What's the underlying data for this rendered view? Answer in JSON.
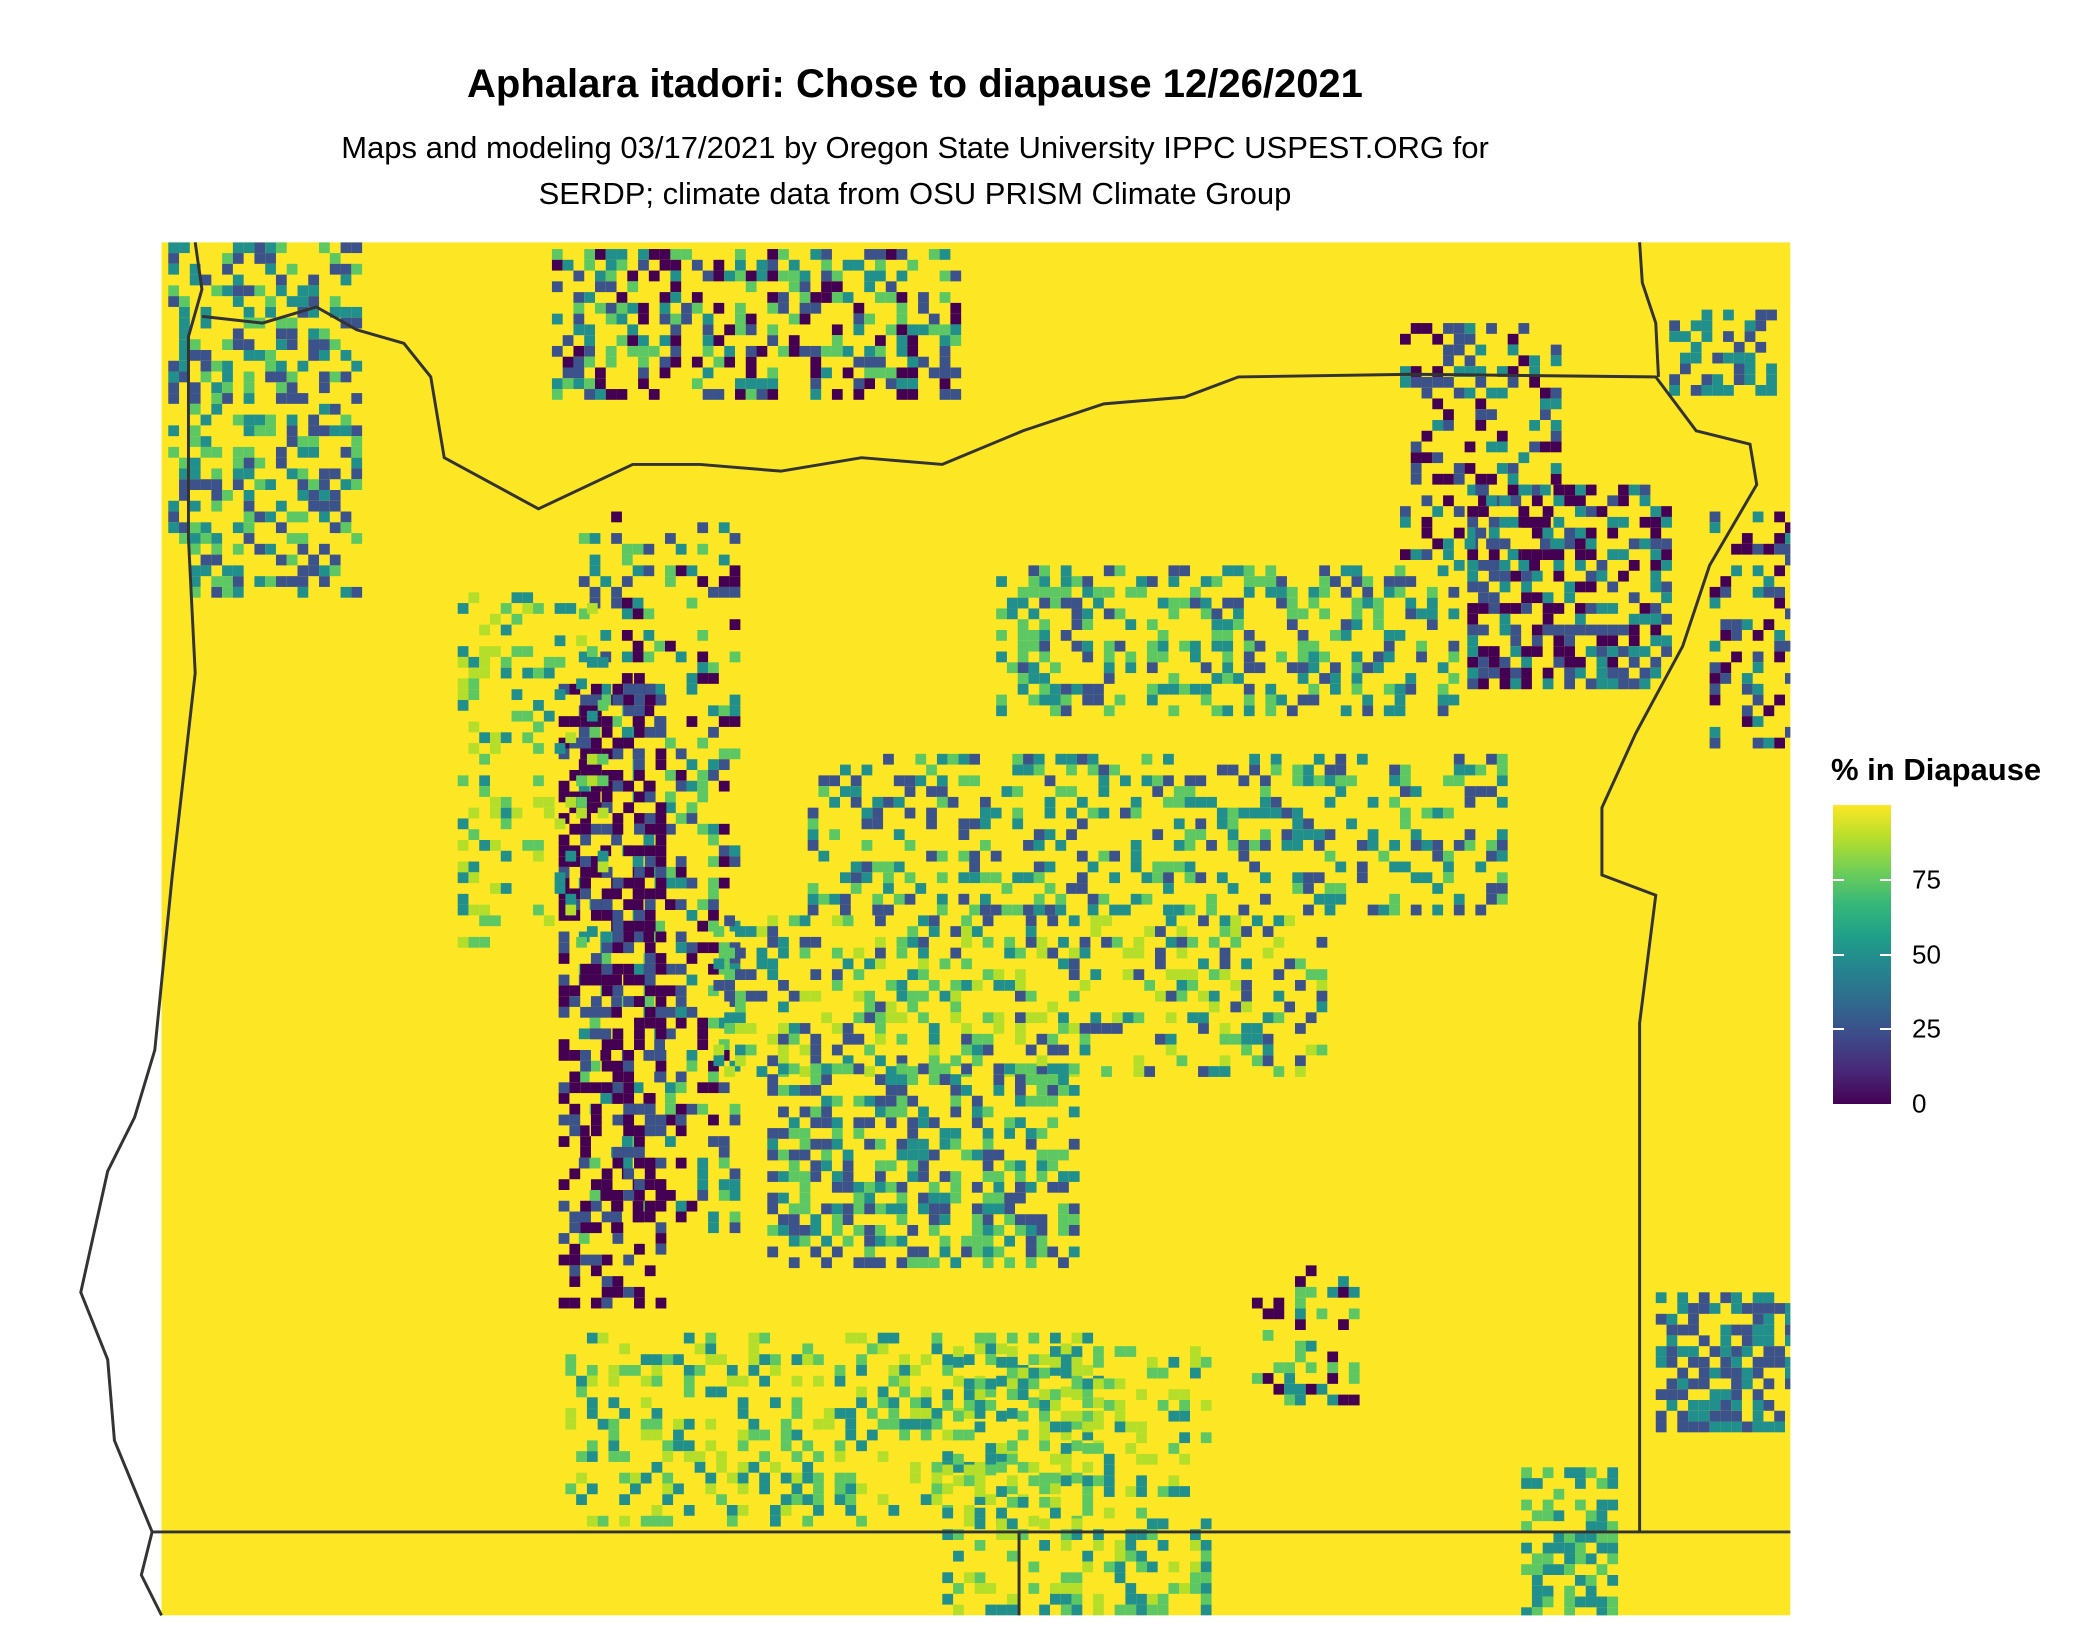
{
  "chart_data": {
    "type": "heatmap",
    "title": "Aphalara itadori: Chose to diapause 12/26/2021",
    "subtitle_lines": [
      "Maps and modeling 03/17/2021 by Oregon State University IPPC USPEST.ORG for",
      "SERDP; climate data from OSU PRISM Climate Group"
    ],
    "legend": {
      "title": "% in Diapause",
      "placement": "right",
      "range": [
        0,
        100
      ],
      "ticks": [
        0,
        25,
        50,
        75
      ],
      "tick_labels": [
        "0",
        "25",
        "50",
        "75"
      ],
      "colormap": "viridis",
      "colors": {
        "low": "#440154",
        "mid": "#21908d",
        "high": "#fde725"
      }
    },
    "region": "Oregon and surrounding areas",
    "dominant_value": "near 100% across most of the map; lower values in the Cascades, Blue Mountains and southern uplands"
  }
}
